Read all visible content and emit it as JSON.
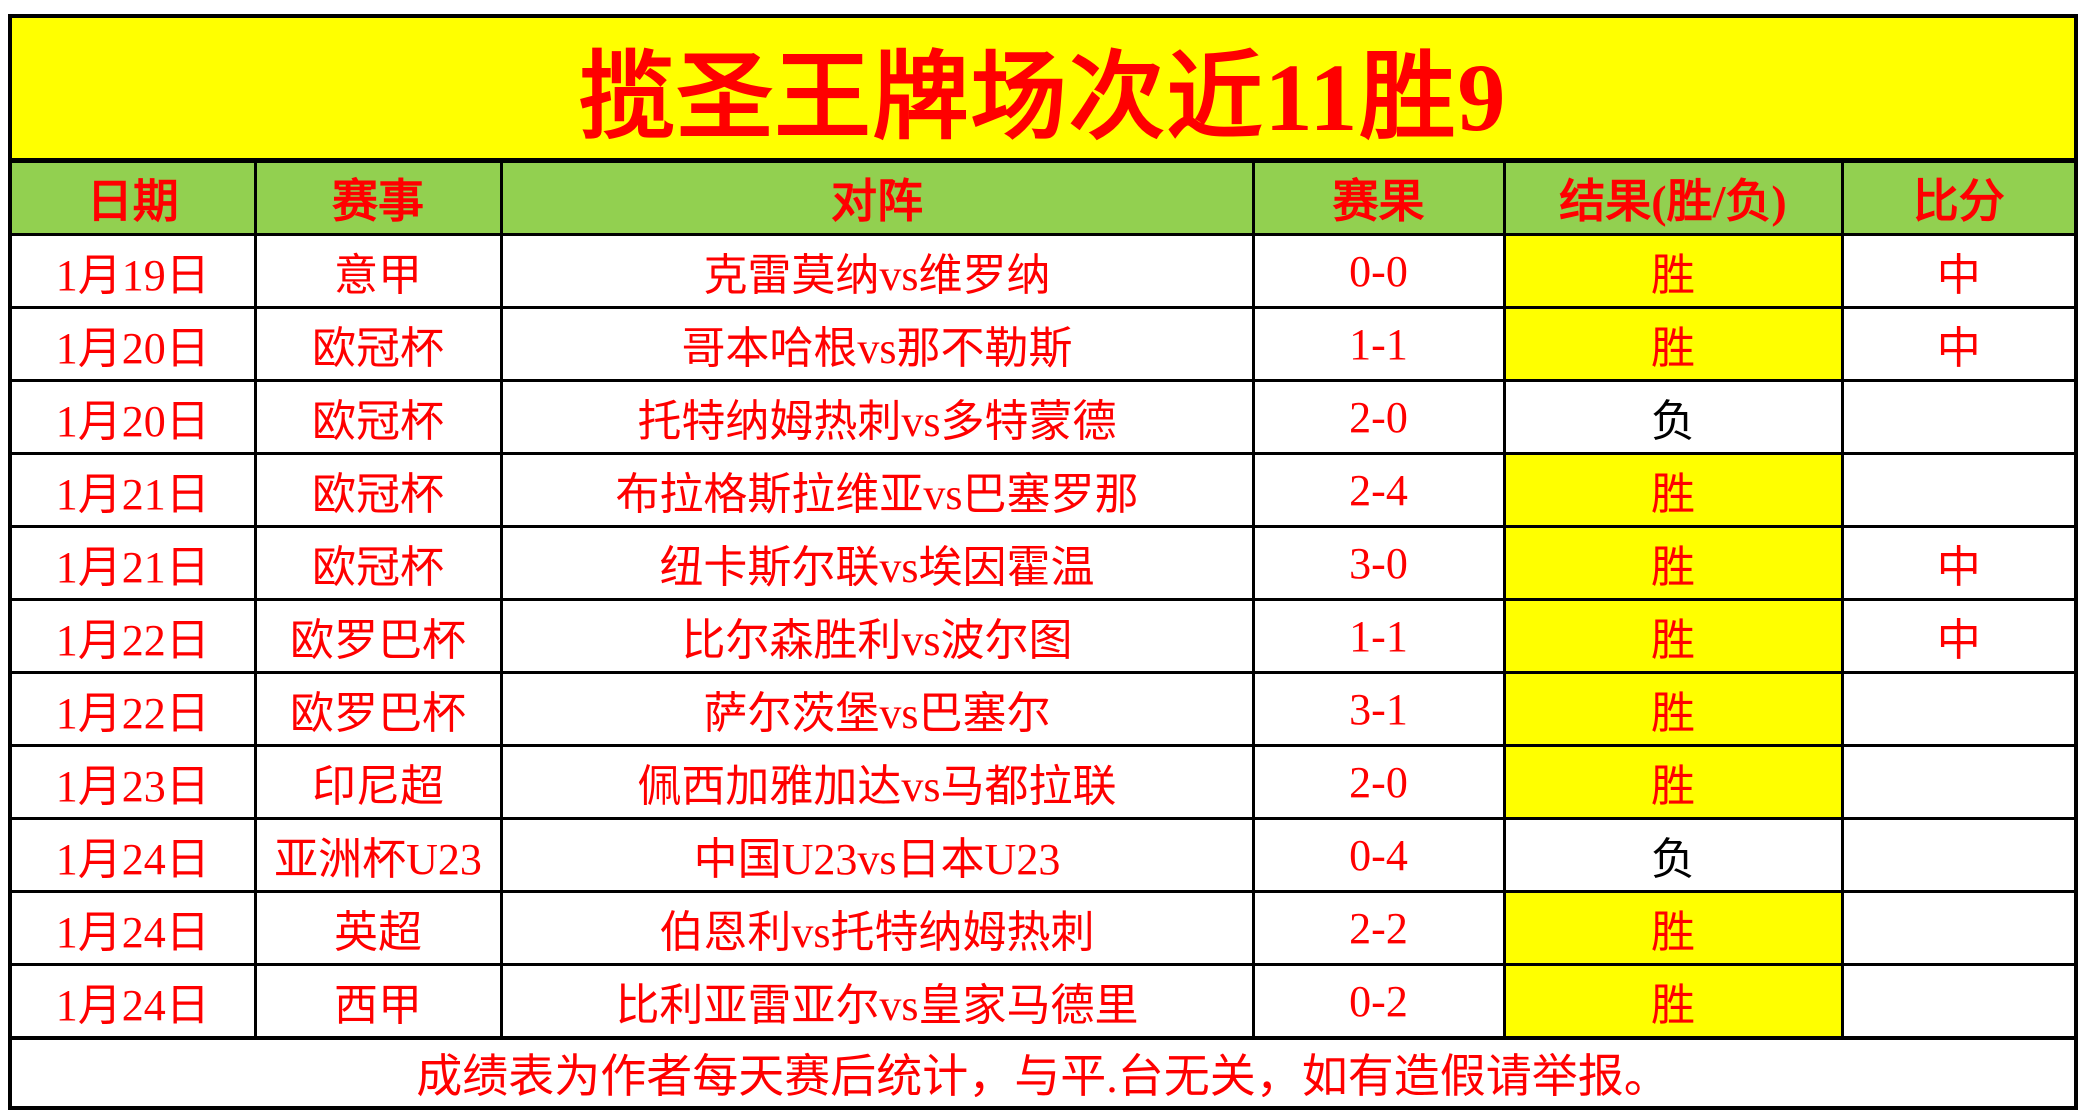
{
  "banner": {
    "title": "揽圣王牌场次近11胜9"
  },
  "colors": {
    "banner_bg": "#FFFF00",
    "header_bg": "#92D050",
    "accent_red": "#FF0000",
    "win_cell_bg": "#FFFF00",
    "loss_text": "#000000",
    "border": "#000000"
  },
  "table": {
    "headers": [
      "日期",
      "赛事",
      "对阵",
      "赛果",
      "结果(胜/负)",
      "比分"
    ],
    "rows": [
      {
        "date": "1月19日",
        "league": "意甲",
        "match": "克雷莫纳vs维罗纳",
        "score": "0-0",
        "result": "胜",
        "win": true,
        "outcome": "中"
      },
      {
        "date": "1月20日",
        "league": "欧冠杯",
        "match": "哥本哈根vs那不勒斯",
        "score": "1-1",
        "result": "胜",
        "win": true,
        "outcome": "中"
      },
      {
        "date": "1月20日",
        "league": "欧冠杯",
        "match": "托特纳姆热刺vs多特蒙德",
        "score": "2-0",
        "result": "负",
        "win": false,
        "outcome": ""
      },
      {
        "date": "1月21日",
        "league": "欧冠杯",
        "match": "布拉格斯拉维亚vs巴塞罗那",
        "score": "2-4",
        "result": "胜",
        "win": true,
        "outcome": ""
      },
      {
        "date": "1月21日",
        "league": "欧冠杯",
        "match": "纽卡斯尔联vs埃因霍温",
        "score": "3-0",
        "result": "胜",
        "win": true,
        "outcome": "中"
      },
      {
        "date": "1月22日",
        "league": "欧罗巴杯",
        "match": "比尔森胜利vs波尔图",
        "score": "1-1",
        "result": "胜",
        "win": true,
        "outcome": "中"
      },
      {
        "date": "1月22日",
        "league": "欧罗巴杯",
        "match": "萨尔茨堡vs巴塞尔",
        "score": "3-1",
        "result": "胜",
        "win": true,
        "outcome": ""
      },
      {
        "date": "1月23日",
        "league": "印尼超",
        "match": "佩西加雅加达vs马都拉联",
        "score": "2-0",
        "result": "胜",
        "win": true,
        "outcome": ""
      },
      {
        "date": "1月24日",
        "league": "亚洲杯U23",
        "match": "中国U23vs日本U23",
        "score": "0-4",
        "result": "负",
        "win": false,
        "outcome": ""
      },
      {
        "date": "1月24日",
        "league": "英超",
        "match": "伯恩利vs托特纳姆热刺",
        "score": "2-2",
        "result": "胜",
        "win": true,
        "outcome": ""
      },
      {
        "date": "1月24日",
        "league": "西甲",
        "match": "比利亚雷亚尔vs皇家马德里",
        "score": "0-2",
        "result": "胜",
        "win": true,
        "outcome": ""
      }
    ]
  },
  "footer": {
    "note": "成绩表为作者每天赛后统计，与平.台无关，如有造假请举报。"
  }
}
